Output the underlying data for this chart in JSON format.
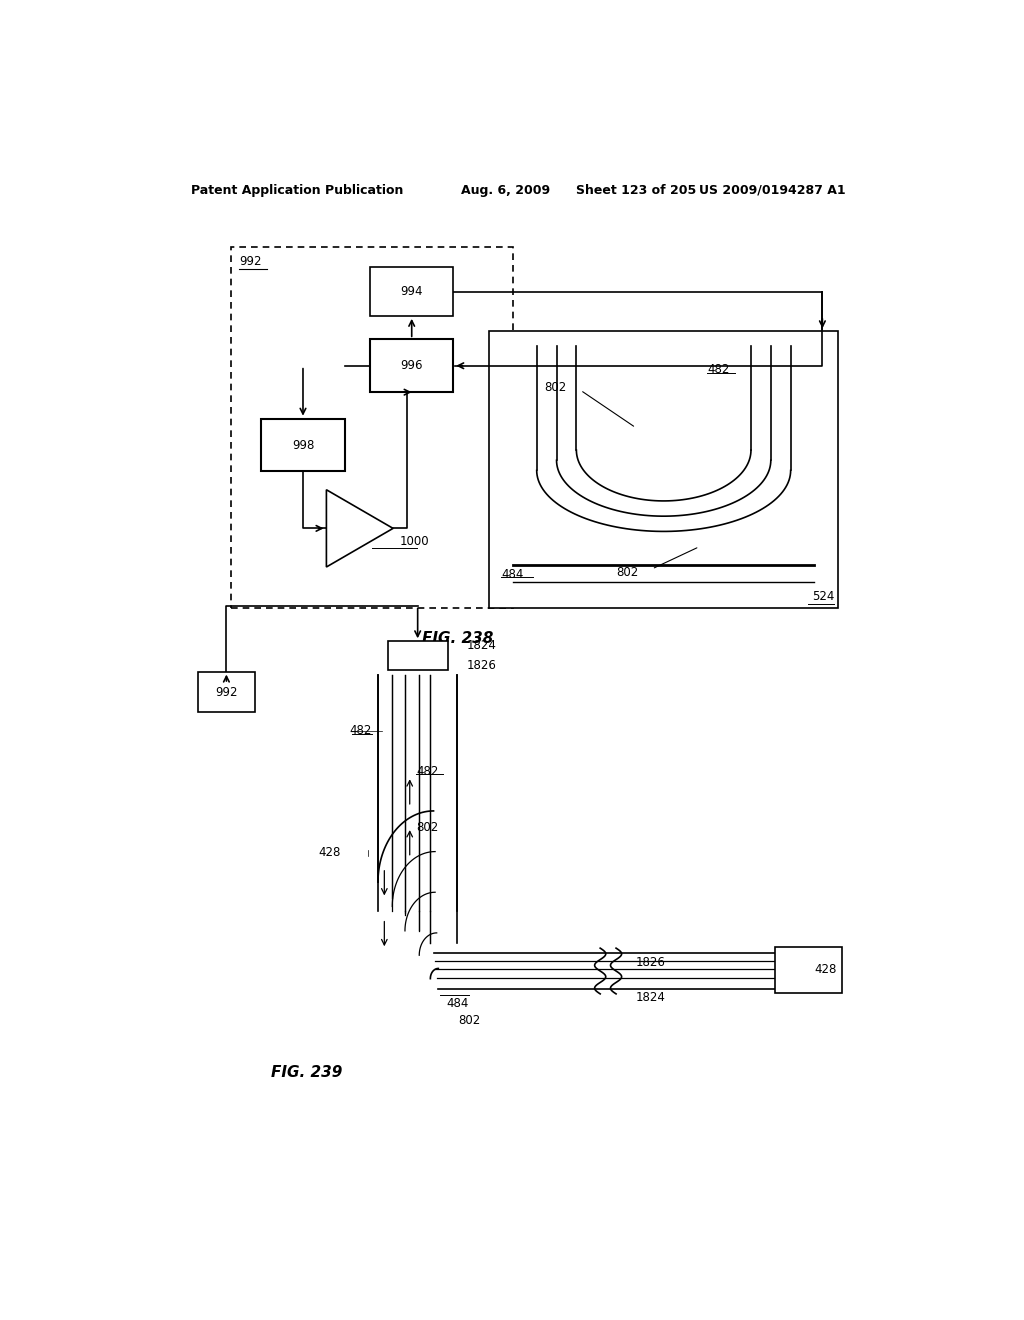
{
  "bg_color": "#ffffff",
  "header_text": "Patent Application Publication",
  "header_date": "Aug. 6, 2009",
  "header_sheet": "Sheet 123 of 205",
  "header_patent": "US 2009/0194287 A1",
  "fig238_caption": "FIG. 238",
  "fig239_caption": "FIG. 239"
}
